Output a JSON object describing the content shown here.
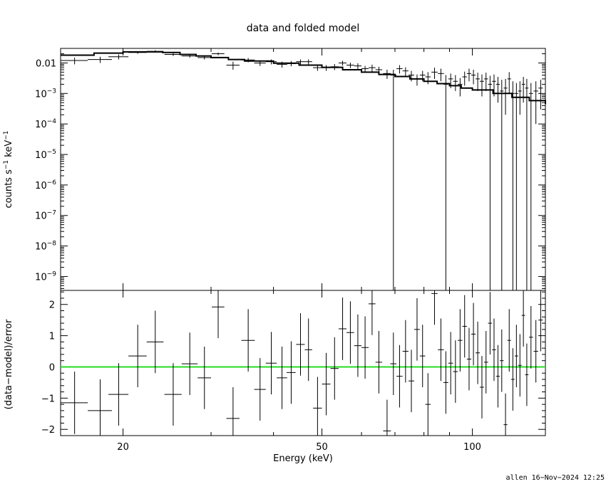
{
  "chart_data": [
    {
      "type": "scatter",
      "title": "data and folded model",
      "xlabel": "",
      "ylabel_main": "counts s",
      "ylabel_sup1": "−1",
      "ylabel_mid": " keV",
      "ylabel_sup2": "−1",
      "xscale": "log",
      "yscale": "log",
      "xlim": [
        15,
        140
      ],
      "ylim": [
        3.5e-10,
        0.03
      ],
      "yticks": [
        {
          "v": 0.01,
          "base": "0.01",
          "exp": ""
        },
        {
          "v": 0.001,
          "base": "10",
          "exp": "−3"
        },
        {
          "v": 0.0001,
          "base": "10",
          "exp": "−4"
        },
        {
          "v": 1e-05,
          "base": "10",
          "exp": "−5"
        },
        {
          "v": 1e-06,
          "base": "10",
          "exp": "−6"
        },
        {
          "v": 1e-07,
          "base": "10",
          "exp": "−7"
        },
        {
          "v": 1e-08,
          "base": "10",
          "exp": "−8"
        },
        {
          "v": 1e-09,
          "base": "10",
          "exp": "−9"
        }
      ],
      "series": [
        {
          "kind": "model",
          "line_color": "#000000",
          "x": [
            15.0,
            17.5,
            20.0,
            22.0,
            24.0,
            26.0,
            28.0,
            30.0,
            32.5,
            35.0,
            40.0,
            45.0,
            50.0,
            55.0,
            60.0,
            65.0,
            70.0,
            75.0,
            80.0,
            85.0,
            90.0,
            95.0,
            100.0,
            110.0,
            120.0,
            130.0,
            140.0
          ],
          "y": [
            0.018,
            0.021,
            0.023,
            0.023,
            0.022,
            0.019,
            0.017,
            0.015,
            0.013,
            0.0115,
            0.0098,
            0.0085,
            0.0072,
            0.006,
            0.005,
            0.0042,
            0.0036,
            0.003,
            0.0025,
            0.0021,
            0.0018,
            0.0015,
            0.0013,
            0.001,
            0.00075,
            0.00058,
            0.00045
          ]
        },
        {
          "kind": "data",
          "x": [
            16.0,
            18.0,
            19.6,
            21.4,
            23.2,
            25.2,
            27.2,
            29.1,
            31.0,
            33.2,
            35.6,
            37.6,
            39.6,
            41.6,
            43.4,
            45.3,
            47.0,
            49.0,
            51.0,
            53.0,
            55.0,
            57.0,
            59.0,
            61.0,
            63.0,
            65.0,
            67.5,
            69.5,
            71.5,
            73.5,
            75.5,
            77.5,
            79.5,
            81.5,
            84.0,
            86.5,
            88.5,
            90.5,
            92.5,
            94.5,
            96.5,
            98.5,
            100.5,
            102.5,
            104.5,
            106.5,
            108.5,
            110.5,
            112.5,
            114.5,
            116.5,
            118.5,
            120.5,
            122.5,
            124.5,
            126.5,
            128.5,
            131.0,
            134.0,
            137.0
          ],
          "xerr": [
            1.0,
            1.0,
            0.9,
            0.9,
            0.9,
            1.0,
            1.0,
            0.9,
            0.9,
            1.0,
            1.1,
            1.0,
            1.0,
            1.0,
            0.9,
            0.9,
            0.8,
            1.0,
            1.0,
            1.0,
            1.0,
            1.0,
            1.0,
            1.0,
            1.0,
            1.0,
            1.2,
            1.0,
            1.0,
            1.0,
            1.0,
            1.0,
            1.0,
            1.0,
            1.2,
            1.2,
            1.0,
            1.0,
            1.0,
            1.0,
            1.0,
            1.0,
            1.0,
            1.0,
            1.0,
            1.0,
            1.0,
            1.0,
            1.0,
            1.0,
            1.0,
            1.0,
            1.0,
            1.0,
            1.0,
            1.0,
            1.0,
            1.2,
            1.4,
            1.4
          ],
          "y": [
            0.012,
            0.013,
            0.016,
            0.022,
            0.024,
            0.019,
            0.017,
            0.015,
            0.02,
            0.0085,
            0.0125,
            0.01,
            0.011,
            0.009,
            0.0095,
            0.011,
            0.011,
            0.007,
            0.007,
            0.0075,
            0.01,
            0.0085,
            0.008,
            0.0065,
            0.007,
            0.006,
            0.0045,
            0.004,
            0.0065,
            0.0055,
            0.004,
            0.003,
            0.004,
            0.0035,
            0.005,
            0.0045,
            0.002,
            0.003,
            0.0025,
            0.002,
            0.0035,
            0.0045,
            0.004,
            0.003,
            0.0025,
            0.003,
            0.002,
            0.0025,
            0.002,
            0.0012,
            0.0015,
            0.003,
            0.001,
            0.001,
            0.0012,
            0.002,
            0.0015,
            0.001,
            0.0012,
            0.0015
          ],
          "ylo": [
            0.009,
            0.01,
            0.013,
            0.02,
            0.022,
            0.017,
            0.015,
            0.013,
            0.018,
            0.006,
            0.0105,
            0.008,
            0.009,
            0.007,
            0.0078,
            0.009,
            0.009,
            0.0055,
            0.0055,
            0.0058,
            0.0082,
            0.0068,
            0.0062,
            0.005,
            0.0052,
            0.0045,
            0.003,
            1e-12,
            0.0045,
            0.0038,
            0.0025,
            0.0018,
            0.0025,
            0.002,
            0.003,
            0.0025,
            1e-12,
            0.0015,
            0.0012,
            0.0008,
            0.0018,
            0.0025,
            0.002,
            0.0012,
            0.0008,
            0.0012,
            1e-12,
            0.0008,
            0.0005,
            1e-12,
            0.0002,
            0.001,
            1e-12,
            1e-12,
            0.0002,
            0.0005,
            1e-12,
            1e-12,
            0.0001,
            0.0003
          ],
          "yhi": [
            0.015,
            0.016,
            0.019,
            0.024,
            0.026,
            0.021,
            0.019,
            0.017,
            0.022,
            0.011,
            0.0145,
            0.012,
            0.013,
            0.011,
            0.0115,
            0.013,
            0.013,
            0.0085,
            0.0085,
            0.0092,
            0.0118,
            0.0102,
            0.0098,
            0.008,
            0.0088,
            0.0075,
            0.006,
            0.006,
            0.0085,
            0.0072,
            0.0055,
            0.0042,
            0.0055,
            0.005,
            0.007,
            0.0065,
            0.004,
            0.0045,
            0.004,
            0.0032,
            0.0052,
            0.0065,
            0.006,
            0.0048,
            0.0042,
            0.0048,
            0.0038,
            0.0042,
            0.0035,
            0.0028,
            0.003,
            0.005,
            0.0025,
            0.0022,
            0.0025,
            0.0035,
            0.003,
            0.0022,
            0.0025,
            0.0028
          ],
          "yerr_note": ""
        }
      ]
    },
    {
      "type": "scatter",
      "title": "",
      "xlabel": "Energy (keV)",
      "ylabel": "(data−model)/error",
      "xscale": "log",
      "xlim": [
        15,
        140
      ],
      "ylim": [
        -2.2,
        2.45
      ],
      "xticks": [
        {
          "v": 20,
          "label": "20"
        },
        {
          "v": 50,
          "label": "50"
        },
        {
          "v": 100,
          "label": "100"
        }
      ],
      "yticks": [
        {
          "v": 2,
          "label": "2"
        },
        {
          "v": 1,
          "label": "1"
        },
        {
          "v": 0,
          "label": "0"
        },
        {
          "v": -1,
          "label": "−1"
        },
        {
          "v": -2,
          "label": "−2"
        }
      ],
      "zero_line_color": "#22dd22",
      "series": [
        {
          "kind": "residuals",
          "x": [
            16.0,
            18.0,
            19.6,
            21.4,
            23.2,
            25.2,
            27.2,
            29.1,
            31.0,
            33.2,
            35.6,
            37.6,
            39.6,
            41.6,
            43.4,
            45.3,
            47.0,
            49.0,
            51.0,
            53.0,
            55.0,
            57.0,
            59.0,
            61.0,
            63.0,
            65.0,
            67.5,
            69.5,
            71.5,
            73.5,
            75.5,
            77.5,
            79.5,
            81.5,
            84.0,
            86.5,
            88.5,
            90.5,
            92.5,
            94.5,
            96.5,
            98.5,
            100.5,
            102.5,
            104.5,
            106.5,
            108.5,
            110.5,
            112.5,
            114.5,
            116.5,
            118.5,
            120.5,
            122.5,
            124.5,
            126.5,
            128.5,
            131.0,
            134.0,
            137.0
          ],
          "xerr": [
            1.0,
            1.0,
            0.9,
            0.9,
            0.9,
            1.0,
            1.0,
            0.9,
            0.9,
            1.0,
            1.1,
            1.0,
            1.0,
            1.0,
            0.9,
            0.9,
            0.8,
            1.0,
            1.0,
            1.0,
            1.0,
            1.0,
            1.0,
            1.0,
            1.0,
            1.0,
            1.2,
            1.0,
            1.0,
            1.0,
            1.0,
            1.0,
            1.0,
            1.0,
            1.2,
            1.2,
            1.0,
            1.0,
            1.0,
            1.0,
            1.0,
            1.0,
            1.0,
            1.0,
            1.0,
            1.0,
            1.0,
            1.0,
            1.0,
            1.0,
            1.0,
            1.0,
            1.0,
            1.0,
            1.0,
            1.0,
            1.0,
            1.2,
            1.4,
            1.4
          ],
          "y": [
            -1.15,
            -1.4,
            -0.88,
            0.35,
            0.8,
            -0.88,
            0.1,
            -0.35,
            1.92,
            -1.65,
            0.85,
            -0.72,
            0.12,
            -0.35,
            -0.18,
            0.72,
            0.55,
            -1.32,
            -0.55,
            -0.05,
            1.22,
            1.1,
            0.68,
            0.62,
            2.02,
            0.15,
            -2.05,
            0.1,
            -0.3,
            0.5,
            -0.45,
            1.2,
            0.35,
            -1.2,
            2.35,
            0.55,
            -0.5,
            0.12,
            -0.15,
            0.85,
            1.3,
            0.25,
            1.05,
            0.45,
            -0.65,
            0.15,
            1.4,
            0.55,
            -0.3,
            0.2,
            -1.85,
            0.85,
            -0.4,
            0.35,
            0.05,
            1.65,
            -0.25,
            0.95,
            0.5,
            1.5
          ],
          "err": [
            1.0,
            1.0,
            1.0,
            1.0,
            1.0,
            1.0,
            1.0,
            1.0,
            1.0,
            1.0,
            1.0,
            1.0,
            1.0,
            1.0,
            1.0,
            1.0,
            1.0,
            1.0,
            1.0,
            1.0,
            1.0,
            1.0,
            1.0,
            1.0,
            1.0,
            1.0,
            1.0,
            1.0,
            1.0,
            1.0,
            1.0,
            1.0,
            1.0,
            1.0,
            1.0,
            1.0,
            1.0,
            1.0,
            1.0,
            1.0,
            1.0,
            1.0,
            1.0,
            1.0,
            1.0,
            1.0,
            1.0,
            1.0,
            1.0,
            1.0,
            1.0,
            1.0,
            1.0,
            1.0,
            1.0,
            1.0,
            1.0,
            1.0,
            1.0,
            1.0
          ]
        }
      ]
    }
  ],
  "footer": {
    "stamp": "allen 16−Nov−2024 12:25"
  }
}
